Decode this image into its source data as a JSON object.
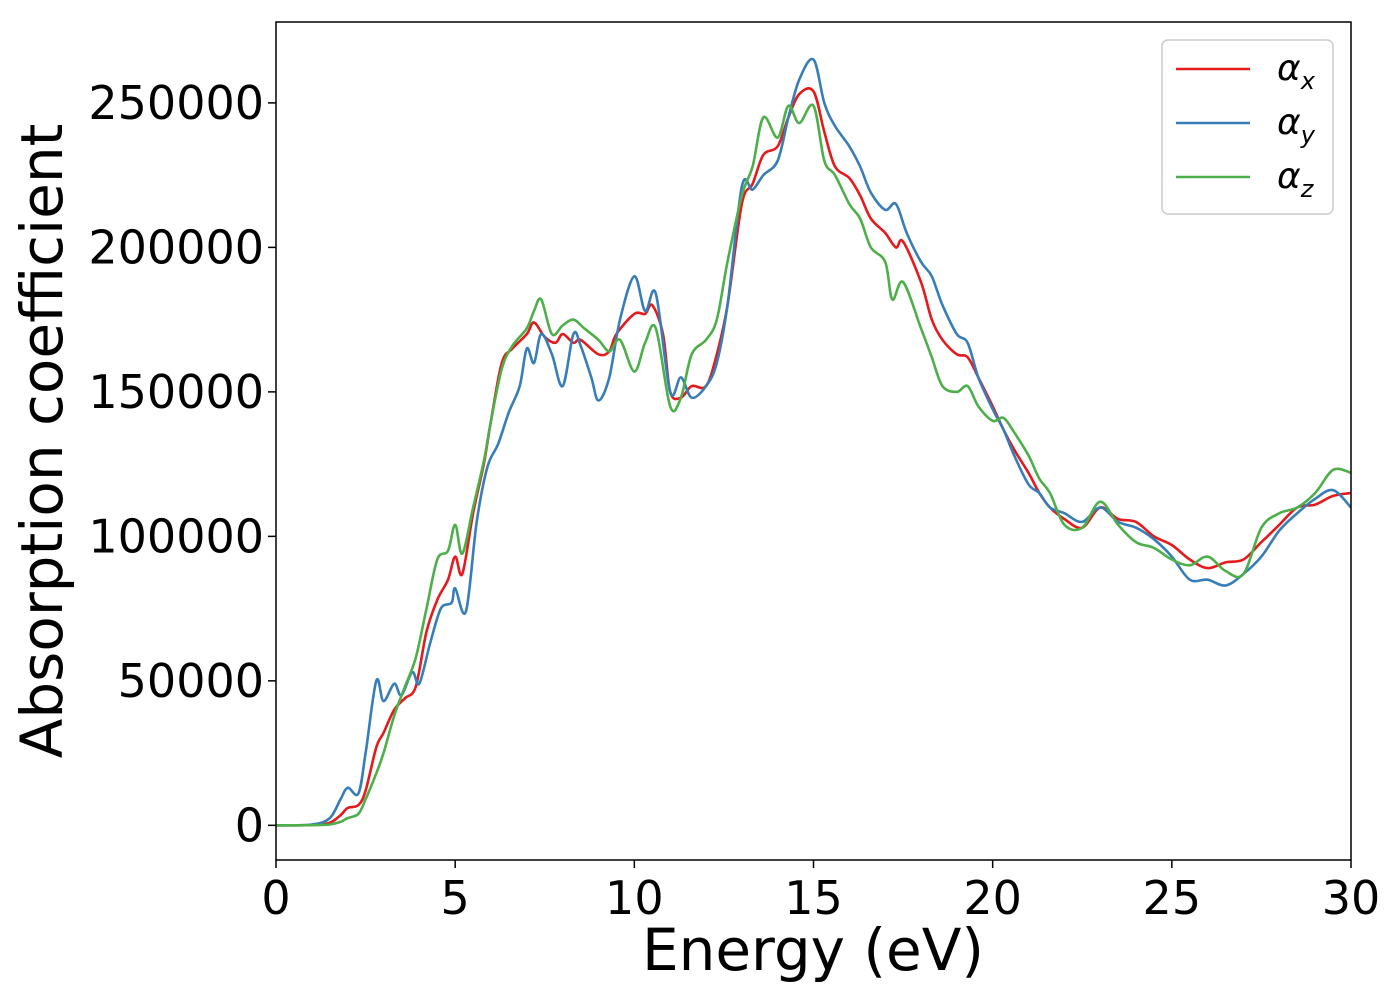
{
  "chart_data": {
    "type": "line",
    "title": "",
    "xlabel": "Energy (eV)",
    "ylabel": "Absorption coefficient",
    "xlim": [
      0,
      30
    ],
    "ylim": [
      -12000,
      278000
    ],
    "xticks": [
      0,
      5,
      10,
      15,
      20,
      25,
      30
    ],
    "xtick_labels": [
      "0",
      "5",
      "10",
      "15",
      "20",
      "25",
      "30"
    ],
    "yticks": [
      0,
      50000,
      100000,
      150000,
      200000,
      250000
    ],
    "ytick_labels": [
      "0",
      "50000",
      "100000",
      "150000",
      "200000",
      "250000"
    ],
    "grid": false,
    "legend_position": "top-right",
    "series": [
      {
        "name": "α_x",
        "base": "α",
        "sub": "x",
        "color": "#e41a1c",
        "points": [
          [
            0,
            0
          ],
          [
            1,
            100
          ],
          [
            1.5,
            900
          ],
          [
            1.8,
            3500
          ],
          [
            2,
            6000
          ],
          [
            2.3,
            7000
          ],
          [
            2.5,
            12000
          ],
          [
            2.8,
            27000
          ],
          [
            3,
            32000
          ],
          [
            3.3,
            40000
          ],
          [
            3.6,
            44000
          ],
          [
            3.9,
            48000
          ],
          [
            4.2,
            67000
          ],
          [
            4.5,
            78000
          ],
          [
            4.8,
            85000
          ],
          [
            5,
            93000
          ],
          [
            5.2,
            87000
          ],
          [
            5.5,
            108000
          ],
          [
            5.8,
            125000
          ],
          [
            6,
            140000
          ],
          [
            6.3,
            160000
          ],
          [
            6.6,
            165000
          ],
          [
            7,
            170000
          ],
          [
            7.2,
            174000
          ],
          [
            7.5,
            169000
          ],
          [
            7.8,
            167000
          ],
          [
            8,
            170000
          ],
          [
            8.3,
            167000
          ],
          [
            8.5,
            168000
          ],
          [
            9,
            163000
          ],
          [
            9.3,
            164000
          ],
          [
            9.5,
            170000
          ],
          [
            10,
            177000
          ],
          [
            10.3,
            177000
          ],
          [
            10.5,
            180000
          ],
          [
            10.8,
            170000
          ],
          [
            11,
            150000
          ],
          [
            11.3,
            148000
          ],
          [
            11.6,
            152000
          ],
          [
            12,
            152000
          ],
          [
            12.3,
            163000
          ],
          [
            12.6,
            180000
          ],
          [
            13,
            215000
          ],
          [
            13.3,
            222000
          ],
          [
            13.6,
            232000
          ],
          [
            14,
            235000
          ],
          [
            14.3,
            245000
          ],
          [
            14.6,
            253000
          ],
          [
            15,
            254000
          ],
          [
            15.3,
            240000
          ],
          [
            15.6,
            228000
          ],
          [
            16,
            224000
          ],
          [
            16.3,
            218000
          ],
          [
            16.6,
            210000
          ],
          [
            17,
            205000
          ],
          [
            17.3,
            200000
          ],
          [
            17.5,
            202000
          ],
          [
            18,
            188000
          ],
          [
            18.3,
            175000
          ],
          [
            18.6,
            168000
          ],
          [
            19,
            163000
          ],
          [
            19.3,
            162000
          ],
          [
            19.6,
            155000
          ],
          [
            20,
            145000
          ],
          [
            20.3,
            137000
          ],
          [
            20.6,
            130000
          ],
          [
            21,
            122000
          ],
          [
            21.3,
            115000
          ],
          [
            21.6,
            110000
          ],
          [
            22,
            106000
          ],
          [
            22.5,
            103000
          ],
          [
            23,
            110000
          ],
          [
            23.5,
            106000
          ],
          [
            24,
            105000
          ],
          [
            24.5,
            100000
          ],
          [
            25,
            97000
          ],
          [
            25.5,
            92000
          ],
          [
            26,
            89000
          ],
          [
            26.5,
            91000
          ],
          [
            27,
            92000
          ],
          [
            27.5,
            98000
          ],
          [
            28,
            104000
          ],
          [
            28.5,
            110000
          ],
          [
            29,
            111000
          ],
          [
            29.5,
            114000
          ],
          [
            30,
            115000
          ]
        ]
      },
      {
        "name": "α_y",
        "base": "α",
        "sub": "y",
        "color": "#377eb8",
        "points": [
          [
            0,
            0
          ],
          [
            1,
            300
          ],
          [
            1.5,
            2500
          ],
          [
            1.8,
            9000
          ],
          [
            2,
            13000
          ],
          [
            2.3,
            11000
          ],
          [
            2.5,
            25000
          ],
          [
            2.8,
            50000
          ],
          [
            3,
            43000
          ],
          [
            3.3,
            49000
          ],
          [
            3.5,
            45000
          ],
          [
            3.8,
            53000
          ],
          [
            4,
            49000
          ],
          [
            4.3,
            63000
          ],
          [
            4.6,
            75000
          ],
          [
            4.9,
            77000
          ],
          [
            5,
            82000
          ],
          [
            5.3,
            74000
          ],
          [
            5.6,
            105000
          ],
          [
            5.9,
            124000
          ],
          [
            6.2,
            132000
          ],
          [
            6.5,
            143000
          ],
          [
            6.8,
            152000
          ],
          [
            7,
            165000
          ],
          [
            7.2,
            160000
          ],
          [
            7.4,
            170000
          ],
          [
            7.7,
            163000
          ],
          [
            8,
            152000
          ],
          [
            8.3,
            170000
          ],
          [
            8.5,
            166000
          ],
          [
            8.8,
            155000
          ],
          [
            9,
            147000
          ],
          [
            9.3,
            155000
          ],
          [
            9.6,
            175000
          ],
          [
            10,
            190000
          ],
          [
            10.3,
            178000
          ],
          [
            10.6,
            184000
          ],
          [
            11,
            150000
          ],
          [
            11.3,
            155000
          ],
          [
            11.6,
            148000
          ],
          [
            12,
            152000
          ],
          [
            12.3,
            160000
          ],
          [
            12.6,
            180000
          ],
          [
            13,
            221000
          ],
          [
            13.3,
            220000
          ],
          [
            13.6,
            225000
          ],
          [
            14,
            230000
          ],
          [
            14.3,
            245000
          ],
          [
            14.6,
            258000
          ],
          [
            15,
            265000
          ],
          [
            15.3,
            250000
          ],
          [
            15.6,
            242000
          ],
          [
            16,
            235000
          ],
          [
            16.3,
            228000
          ],
          [
            16.6,
            219000
          ],
          [
            17,
            213000
          ],
          [
            17.3,
            215000
          ],
          [
            17.6,
            205000
          ],
          [
            18,
            195000
          ],
          [
            18.3,
            190000
          ],
          [
            18.6,
            180000
          ],
          [
            19,
            170000
          ],
          [
            19.3,
            167000
          ],
          [
            19.6,
            155000
          ],
          [
            20,
            144000
          ],
          [
            20.3,
            137000
          ],
          [
            20.6,
            128000
          ],
          [
            21,
            118000
          ],
          [
            21.3,
            115000
          ],
          [
            21.6,
            110000
          ],
          [
            22,
            108000
          ],
          [
            22.5,
            105000
          ],
          [
            23,
            110000
          ],
          [
            23.5,
            105000
          ],
          [
            24,
            103000
          ],
          [
            24.5,
            99000
          ],
          [
            25,
            93000
          ],
          [
            25.5,
            85000
          ],
          [
            26,
            85000
          ],
          [
            26.5,
            83000
          ],
          [
            27,
            87000
          ],
          [
            27.5,
            93000
          ],
          [
            28,
            102000
          ],
          [
            28.5,
            108000
          ],
          [
            29,
            113000
          ],
          [
            29.5,
            116000
          ],
          [
            30,
            110000
          ]
        ]
      },
      {
        "name": "α_z",
        "base": "α",
        "sub": "z",
        "color": "#4daf4a",
        "points": [
          [
            0,
            0
          ],
          [
            1,
            50
          ],
          [
            1.5,
            300
          ],
          [
            1.8,
            1200
          ],
          [
            2,
            2500
          ],
          [
            2.3,
            4000
          ],
          [
            2.5,
            9000
          ],
          [
            2.8,
            18000
          ],
          [
            3,
            25000
          ],
          [
            3.3,
            38000
          ],
          [
            3.6,
            48000
          ],
          [
            3.9,
            58000
          ],
          [
            4.2,
            75000
          ],
          [
            4.5,
            92000
          ],
          [
            4.8,
            95000
          ],
          [
            5,
            104000
          ],
          [
            5.2,
            94000
          ],
          [
            5.5,
            110000
          ],
          [
            5.8,
            126000
          ],
          [
            6,
            140000
          ],
          [
            6.3,
            158000
          ],
          [
            6.6,
            166000
          ],
          [
            7,
            172000
          ],
          [
            7.2,
            178000
          ],
          [
            7.4,
            182000
          ],
          [
            7.7,
            170000
          ],
          [
            8,
            173000
          ],
          [
            8.3,
            175000
          ],
          [
            8.6,
            172000
          ],
          [
            9,
            168000
          ],
          [
            9.3,
            164000
          ],
          [
            9.6,
            168000
          ],
          [
            10,
            157000
          ],
          [
            10.3,
            167000
          ],
          [
            10.6,
            172000
          ],
          [
            11,
            145000
          ],
          [
            11.3,
            148000
          ],
          [
            11.6,
            163000
          ],
          [
            12,
            168000
          ],
          [
            12.3,
            175000
          ],
          [
            12.6,
            195000
          ],
          [
            13,
            218000
          ],
          [
            13.3,
            228000
          ],
          [
            13.6,
            245000
          ],
          [
            14,
            238000
          ],
          [
            14.3,
            249000
          ],
          [
            14.6,
            243000
          ],
          [
            15,
            249000
          ],
          [
            15.3,
            230000
          ],
          [
            15.6,
            225000
          ],
          [
            16,
            215000
          ],
          [
            16.3,
            210000
          ],
          [
            16.6,
            200000
          ],
          [
            17,
            195000
          ],
          [
            17.2,
            182000
          ],
          [
            17.5,
            188000
          ],
          [
            18,
            172000
          ],
          [
            18.3,
            162000
          ],
          [
            18.6,
            152000
          ],
          [
            19,
            150000
          ],
          [
            19.3,
            152000
          ],
          [
            19.6,
            145000
          ],
          [
            20,
            140000
          ],
          [
            20.3,
            141000
          ],
          [
            20.6,
            136000
          ],
          [
            21,
            128000
          ],
          [
            21.3,
            120000
          ],
          [
            21.6,
            115000
          ],
          [
            22,
            104000
          ],
          [
            22.5,
            103000
          ],
          [
            23,
            112000
          ],
          [
            23.5,
            104000
          ],
          [
            24,
            98000
          ],
          [
            24.5,
            96000
          ],
          [
            25,
            92000
          ],
          [
            25.5,
            90000
          ],
          [
            26,
            93000
          ],
          [
            26.5,
            88000
          ],
          [
            27,
            87000
          ],
          [
            27.5,
            103000
          ],
          [
            28,
            108000
          ],
          [
            28.5,
            110000
          ],
          [
            29,
            115000
          ],
          [
            29.5,
            123000
          ],
          [
            30,
            122000
          ]
        ]
      }
    ]
  }
}
